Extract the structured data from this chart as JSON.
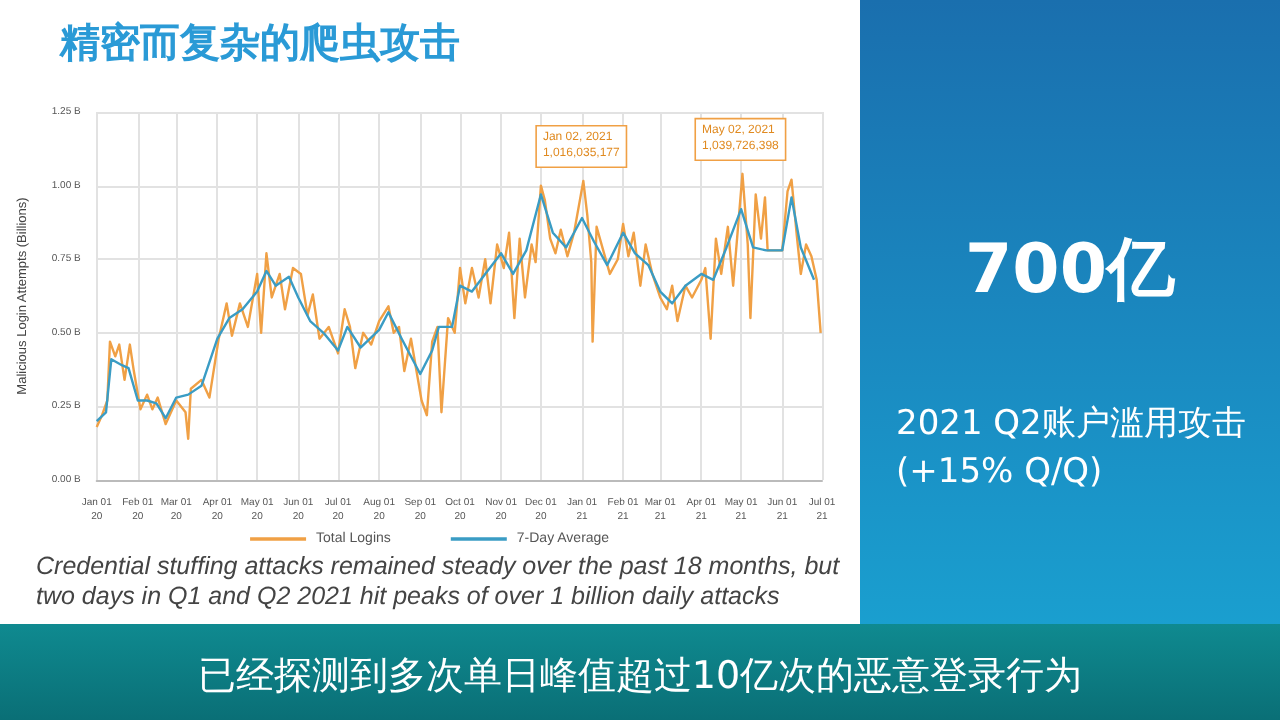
{
  "chart_data": {
    "type": "line",
    "title": "精密而复杂的爬虫攻击",
    "ylabel": "Malicious Login Attempts (Billions)",
    "xlim": [
      "2020-01-01",
      "2021-07-01"
    ],
    "xticks": [
      {
        "value": "2020-01-01",
        "label": "Jan 01\n20"
      },
      {
        "value": "2020-02-01",
        "label": "Feb 01\n20"
      },
      {
        "value": "2020-03-01",
        "label": "Mar 01\n20"
      },
      {
        "value": "2020-04-01",
        "label": "Apr 01\n20"
      },
      {
        "value": "2020-05-01",
        "label": "May 01\n20"
      },
      {
        "value": "2020-06-01",
        "label": "Jun 01\n20"
      },
      {
        "value": "2020-07-01",
        "label": "Jul 01\n20"
      },
      {
        "value": "2020-08-01",
        "label": "Aug 01\n20"
      },
      {
        "value": "2020-09-01",
        "label": "Sep 01\n20"
      },
      {
        "value": "2020-10-01",
        "label": "Oct 01\n20"
      },
      {
        "value": "2020-11-01",
        "label": "Nov 01\n20"
      },
      {
        "value": "2020-12-01",
        "label": "Dec 01\n20"
      },
      {
        "value": "2021-01-01",
        "label": "Jan 01\n21"
      },
      {
        "value": "2021-02-01",
        "label": "Feb 01\n21"
      },
      {
        "value": "2021-03-01",
        "label": "Mar 01\n21"
      },
      {
        "value": "2021-04-01",
        "label": "Apr 01\n21"
      },
      {
        "value": "2021-05-01",
        "label": "May 01\n21"
      },
      {
        "value": "2021-06-01",
        "label": "Jun 01\n21"
      },
      {
        "value": "2021-07-01",
        "label": "Jul 01\n21"
      }
    ],
    "ylim": [
      0,
      1.25
    ],
    "yticks": [
      {
        "value": 0,
        "label": "0.00 B"
      },
      {
        "value": 0.25,
        "label": "0.25 B"
      },
      {
        "value": 0.5,
        "label": "0.50 B"
      },
      {
        "value": 0.75,
        "label": "0.75 B"
      },
      {
        "value": 1,
        "label": "1.00 B"
      },
      {
        "value": 1.25,
        "label": "1.25 B"
      }
    ],
    "grid": true,
    "legend": "bottom",
    "marker": "none",
    "line_style": "solid",
    "series": [
      {
        "name": "Total Logins",
        "color": "#f0a045",
        "x": [
          "2020-01-01",
          "2020-01-05",
          "2020-01-09",
          "2020-01-11",
          "2020-01-15",
          "2020-01-18",
          "2020-01-22",
          "2020-01-26",
          "2020-01-29",
          "2020-02-03",
          "2020-02-08",
          "2020-02-12",
          "2020-02-16",
          "2020-02-22",
          "2020-03-01",
          "2020-03-08",
          "2020-03-10",
          "2020-03-12",
          "2020-03-20",
          "2020-03-26",
          "2020-04-02",
          "2020-04-08",
          "2020-04-12",
          "2020-04-18",
          "2020-04-24",
          "2020-05-01",
          "2020-05-04",
          "2020-05-08",
          "2020-05-12",
          "2020-05-18",
          "2020-05-22",
          "2020-05-28",
          "2020-06-03",
          "2020-06-08",
          "2020-06-12",
          "2020-06-17",
          "2020-06-24",
          "2020-07-01",
          "2020-07-06",
          "2020-07-10",
          "2020-07-14",
          "2020-07-20",
          "2020-07-26",
          "2020-08-01",
          "2020-08-08",
          "2020-08-12",
          "2020-08-16",
          "2020-08-20",
          "2020-08-25",
          "2020-09-02",
          "2020-09-06",
          "2020-09-10",
          "2020-09-14",
          "2020-09-17",
          "2020-09-22",
          "2020-09-27",
          "2020-10-01",
          "2020-10-05",
          "2020-10-10",
          "2020-10-15",
          "2020-10-20",
          "2020-10-24",
          "2020-10-29",
          "2020-11-03",
          "2020-11-07",
          "2020-11-11",
          "2020-11-15",
          "2020-11-19",
          "2020-11-24",
          "2020-11-27",
          "2020-12-01",
          "2020-12-04",
          "2020-12-08",
          "2020-12-12",
          "2020-12-16",
          "2020-12-21",
          "2020-12-26",
          "2021-01-02",
          "2021-01-05",
          "2021-01-08",
          "2021-01-09",
          "2021-01-12",
          "2021-01-17",
          "2021-01-22",
          "2021-01-28",
          "2021-02-01",
          "2021-02-05",
          "2021-02-09",
          "2021-02-14",
          "2021-02-18",
          "2021-02-23",
          "2021-03-01",
          "2021-03-06",
          "2021-03-10",
          "2021-03-14",
          "2021-03-20",
          "2021-03-25",
          "2021-04-01",
          "2021-04-04",
          "2021-04-08",
          "2021-04-12",
          "2021-04-16",
          "2021-04-21",
          "2021-04-25",
          "2021-05-02",
          "2021-05-06",
          "2021-05-08",
          "2021-05-12",
          "2021-05-16",
          "2021-05-19",
          "2021-05-21",
          "2021-06-01",
          "2021-06-05",
          "2021-06-08",
          "2021-06-12",
          "2021-06-15",
          "2021-06-19",
          "2021-06-23",
          "2021-06-27",
          "2021-06-30"
        ],
        "values": [
          0.18,
          0.22,
          0.27,
          0.47,
          0.42,
          0.46,
          0.34,
          0.46,
          0.37,
          0.24,
          0.29,
          0.24,
          0.28,
          0.19,
          0.27,
          0.23,
          0.14,
          0.31,
          0.34,
          0.28,
          0.48,
          0.6,
          0.49,
          0.6,
          0.52,
          0.7,
          0.5,
          0.77,
          0.62,
          0.7,
          0.58,
          0.72,
          0.7,
          0.56,
          0.63,
          0.48,
          0.52,
          0.43,
          0.58,
          0.52,
          0.38,
          0.5,
          0.46,
          0.54,
          0.59,
          0.5,
          0.52,
          0.37,
          0.48,
          0.27,
          0.22,
          0.47,
          0.52,
          0.23,
          0.55,
          0.5,
          0.72,
          0.6,
          0.72,
          0.62,
          0.75,
          0.6,
          0.8,
          0.72,
          0.84,
          0.55,
          0.82,
          0.62,
          0.8,
          0.74,
          1.0,
          0.95,
          0.82,
          0.77,
          0.85,
          0.76,
          0.84,
          1.016,
          0.9,
          0.74,
          0.47,
          0.86,
          0.78,
          0.7,
          0.75,
          0.87,
          0.76,
          0.84,
          0.66,
          0.8,
          0.7,
          0.62,
          0.58,
          0.66,
          0.54,
          0.66,
          0.62,
          0.68,
          0.72,
          0.48,
          0.82,
          0.7,
          0.86,
          0.66,
          1.04,
          0.8,
          0.55,
          0.97,
          0.82,
          0.96,
          0.78,
          0.78,
          0.98,
          1.02,
          0.83,
          0.7,
          0.8,
          0.76,
          0.68,
          0.5
        ]
      },
      {
        "name": "7-Day Average",
        "color": "#3a9cc4",
        "x": [
          "2020-01-01",
          "2020-01-08",
          "2020-01-12",
          "2020-01-20",
          "2020-01-25",
          "2020-02-01",
          "2020-02-08",
          "2020-02-15",
          "2020-02-22",
          "2020-03-01",
          "2020-03-10",
          "2020-03-20",
          "2020-04-01",
          "2020-04-10",
          "2020-04-20",
          "2020-05-01",
          "2020-05-08",
          "2020-05-15",
          "2020-05-25",
          "2020-06-01",
          "2020-06-10",
          "2020-06-20",
          "2020-07-01",
          "2020-07-08",
          "2020-07-18",
          "2020-08-01",
          "2020-08-08",
          "2020-08-18",
          "2020-09-01",
          "2020-09-10",
          "2020-09-15",
          "2020-09-25",
          "2020-10-01",
          "2020-10-10",
          "2020-10-20",
          "2020-11-01",
          "2020-11-10",
          "2020-11-20",
          "2020-12-01",
          "2020-12-10",
          "2020-12-20",
          "2021-01-01",
          "2021-01-10",
          "2021-01-20",
          "2021-02-01",
          "2021-02-10",
          "2021-02-20",
          "2021-03-01",
          "2021-03-10",
          "2021-03-20",
          "2021-04-01",
          "2021-04-10",
          "2021-04-20",
          "2021-05-01",
          "2021-05-10",
          "2021-05-20",
          "2021-06-01",
          "2021-06-08",
          "2021-06-15",
          "2021-06-25"
        ],
        "values": [
          0.2,
          0.23,
          0.41,
          0.39,
          0.38,
          0.27,
          0.27,
          0.26,
          0.21,
          0.28,
          0.29,
          0.32,
          0.48,
          0.55,
          0.58,
          0.64,
          0.71,
          0.66,
          0.69,
          0.62,
          0.54,
          0.5,
          0.44,
          0.52,
          0.45,
          0.51,
          0.57,
          0.48,
          0.36,
          0.44,
          0.52,
          0.52,
          0.66,
          0.64,
          0.7,
          0.77,
          0.7,
          0.78,
          0.97,
          0.84,
          0.79,
          0.89,
          0.81,
          0.73,
          0.84,
          0.77,
          0.73,
          0.64,
          0.6,
          0.66,
          0.7,
          0.68,
          0.79,
          0.92,
          0.79,
          0.78,
          0.78,
          0.96,
          0.79,
          0.68
        ]
      }
    ],
    "annotations": [
      {
        "text": "Jan 02, 2021\n1,016,035,177",
        "x": "2021-01-02",
        "y": 1.016
      },
      {
        "text": "May 02, 2021\n1,039,726,398",
        "x": "2021-05-02",
        "y": 1.04
      },
      "Credential stuffing attacks remained steady over the past 18 months, but two days in Q1 and Q2 2021 hit peaks of over 1 billion daily attacks",
      "700亿",
      "2021 Q2账户滥用攻击 (+15% Q/Q)",
      "已经探测到多次单日峰值超过10亿次的恶意登录行为"
    ]
  }
}
